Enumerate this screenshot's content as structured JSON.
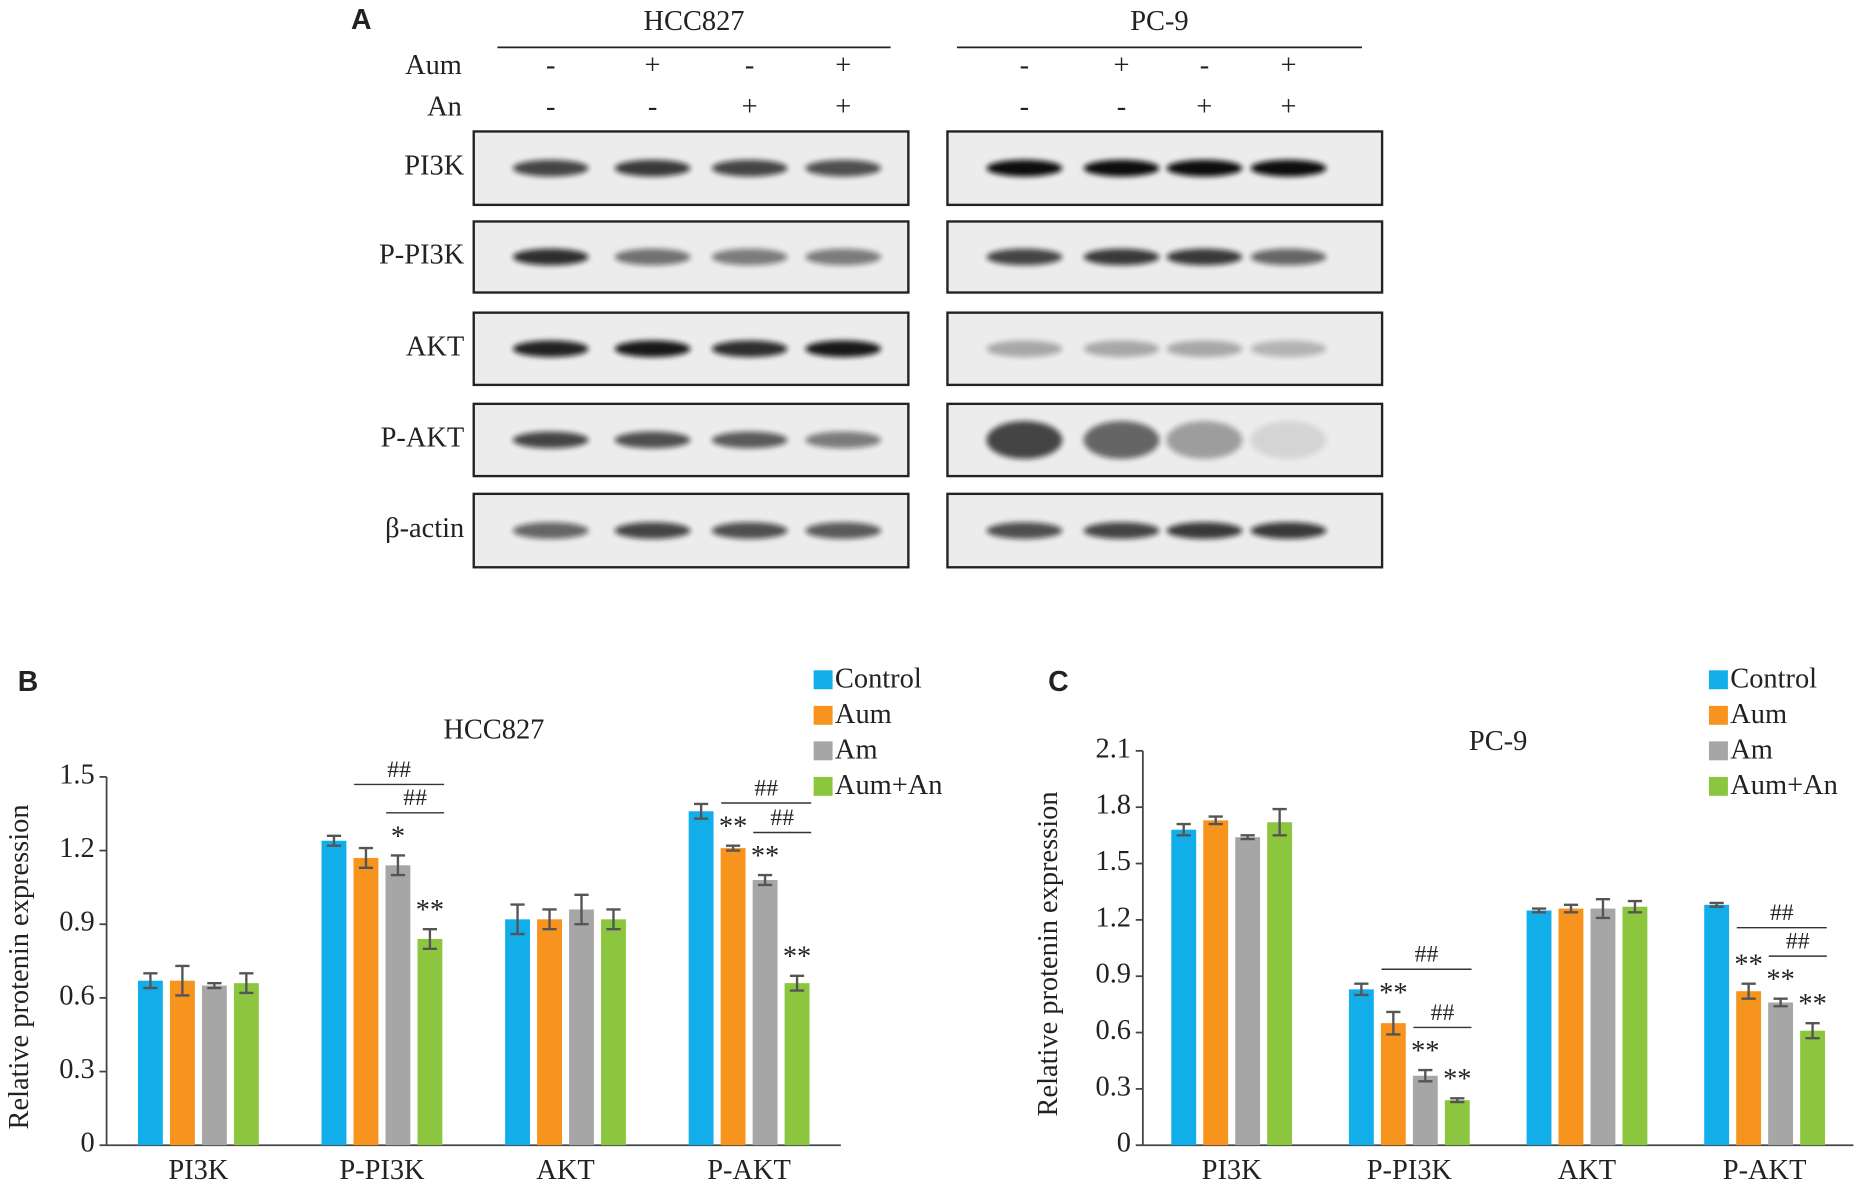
{
  "blot": {
    "label": "A",
    "treatments": [
      "Aum",
      "An"
    ],
    "groups": [
      {
        "name": "HCC827",
        "signs": [
          [
            "-",
            "+",
            "-",
            "+"
          ],
          [
            "-",
            "-",
            "+",
            "+"
          ]
        ]
      },
      {
        "name": "PC-9",
        "signs": [
          [
            "-",
            "+",
            "-",
            "+"
          ],
          [
            "-",
            "-",
            "+",
            "+"
          ]
        ]
      }
    ],
    "proteins": [
      "PI3K",
      "P-PI3K",
      "AKT",
      "P-AKT",
      "β-actin"
    ]
  },
  "chart_data": [
    {
      "type": "bar",
      "label": "B",
      "title": "HCC827",
      "ylabel": "Relative protenin expression",
      "categories": [
        "PI3K",
        "P-PI3K",
        "AKT",
        "P-AKT"
      ],
      "ylim": [
        0,
        1.5
      ],
      "yticks": [
        0,
        0.3,
        0.6,
        0.9,
        1.2,
        1.5
      ],
      "series": [
        {
          "name": "Control",
          "color": "#12aee9",
          "values": [
            0.67,
            1.24,
            0.92,
            1.36
          ],
          "errors": [
            0.03,
            0.02,
            0.06,
            0.03
          ],
          "marks": [
            null,
            null,
            null,
            null
          ]
        },
        {
          "name": "Aum",
          "color": "#f7941d",
          "values": [
            0.67,
            1.17,
            0.92,
            1.21
          ],
          "errors": [
            0.06,
            0.04,
            0.04,
            0.01
          ],
          "marks": [
            null,
            null,
            null,
            "**"
          ]
        },
        {
          "name": "Am",
          "color": "#a6a6a6",
          "values": [
            0.65,
            1.14,
            0.96,
            1.08
          ],
          "errors": [
            0.01,
            0.04,
            0.06,
            0.02
          ],
          "marks": [
            null,
            "*",
            null,
            "**"
          ]
        },
        {
          "name": "Aum+An",
          "color": "#8cc63f",
          "values": [
            0.66,
            0.84,
            0.92,
            0.66
          ],
          "errors": [
            0.04,
            0.04,
            0.04,
            0.03
          ],
          "marks": [
            null,
            "**",
            null,
            "**"
          ]
        }
      ],
      "brackets": [
        {
          "text": "##",
          "category": 1,
          "between": [
            1,
            3
          ]
        },
        {
          "text": "##",
          "category": 1,
          "between": [
            2,
            3
          ]
        },
        {
          "text": "##",
          "category": 3,
          "between": [
            1,
            3
          ]
        },
        {
          "text": "##",
          "category": 3,
          "between": [
            2,
            3
          ]
        }
      ]
    },
    {
      "type": "bar",
      "label": "C",
      "title": "PC-9",
      "ylabel": "Relative protenin expression",
      "categories": [
        "PI3K",
        "P-PI3K",
        "AKT",
        "P-AKT"
      ],
      "ylim": [
        0,
        2.1
      ],
      "yticks": [
        0,
        0.3,
        0.6,
        0.9,
        1.2,
        1.5,
        1.8,
        2.1
      ],
      "series": [
        {
          "name": "Control",
          "color": "#12aee9",
          "values": [
            1.68,
            0.83,
            1.25,
            1.28
          ],
          "errors": [
            0.03,
            0.03,
            0.01,
            0.01
          ],
          "marks": [
            null,
            null,
            null,
            null
          ]
        },
        {
          "name": "Aum",
          "color": "#f7941d",
          "values": [
            1.73,
            0.65,
            1.26,
            0.82
          ],
          "errors": [
            0.02,
            0.06,
            0.02,
            0.04
          ],
          "marks": [
            null,
            "**",
            null,
            "**"
          ]
        },
        {
          "name": "Am",
          "color": "#a6a6a6",
          "values": [
            1.64,
            0.37,
            1.26,
            0.76
          ],
          "errors": [
            0.01,
            0.03,
            0.05,
            0.02
          ],
          "marks": [
            null,
            "**",
            null,
            "**"
          ]
        },
        {
          "name": "Aum+An",
          "color": "#8cc63f",
          "values": [
            1.72,
            0.24,
            1.27,
            0.61
          ],
          "errors": [
            0.07,
            0.01,
            0.03,
            0.04
          ],
          "marks": [
            null,
            "**",
            null,
            "**"
          ]
        }
      ],
      "brackets": [
        {
          "text": "##",
          "category": 1,
          "between": [
            1,
            3
          ]
        },
        {
          "text": "##",
          "category": 1,
          "between": [
            2,
            3
          ]
        },
        {
          "text": "##",
          "category": 3,
          "between": [
            1,
            3
          ]
        },
        {
          "text": "##",
          "category": 3,
          "between": [
            2,
            3
          ]
        }
      ]
    }
  ]
}
